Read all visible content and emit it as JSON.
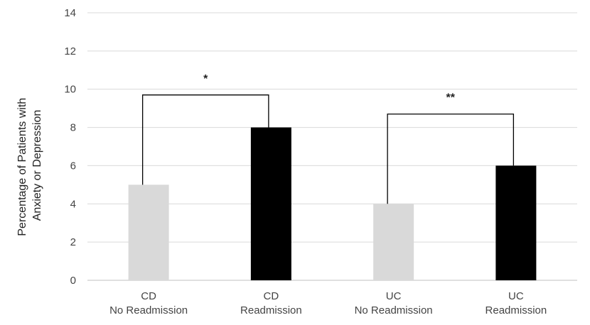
{
  "chart_data": {
    "type": "bar",
    "categories": [
      [
        "CD",
        "No Readmission"
      ],
      [
        "CD",
        "Readmission"
      ],
      [
        "UC",
        "No Readmission"
      ],
      [
        "UC",
        "Readmission"
      ]
    ],
    "values": [
      5,
      8,
      4,
      6
    ],
    "bar_colors": [
      "#d9d9d9",
      "#000000",
      "#d9d9d9",
      "#000000"
    ],
    "ylabel": [
      "Percentage of Patients with",
      "Anxiety or Depression"
    ],
    "ylim": [
      0,
      14
    ],
    "yticks": [
      0,
      2,
      4,
      6,
      8,
      10,
      12,
      14
    ],
    "grid": true,
    "annotations": [
      {
        "from": 0,
        "to": 1,
        "bracket_y": 9.7,
        "label": "*"
      },
      {
        "from": 2,
        "to": 3,
        "bracket_y": 8.7,
        "label": "**"
      }
    ]
  }
}
